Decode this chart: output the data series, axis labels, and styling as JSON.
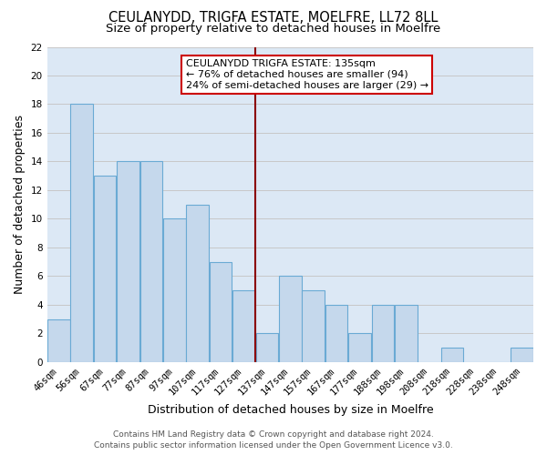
{
  "title": "CEULANYDD, TRIGFA ESTATE, MOELFRE, LL72 8LL",
  "subtitle": "Size of property relative to detached houses in Moelfre",
  "xlabel": "Distribution of detached houses by size in Moelfre",
  "ylabel": "Number of detached properties",
  "bin_labels": [
    "46sqm",
    "56sqm",
    "67sqm",
    "77sqm",
    "87sqm",
    "97sqm",
    "107sqm",
    "117sqm",
    "127sqm",
    "137sqm",
    "147sqm",
    "157sqm",
    "167sqm",
    "177sqm",
    "188sqm",
    "198sqm",
    "208sqm",
    "218sqm",
    "228sqm",
    "238sqm",
    "248sqm"
  ],
  "counts": [
    3,
    18,
    13,
    14,
    14,
    10,
    11,
    7,
    5,
    2,
    6,
    5,
    4,
    2,
    4,
    4,
    0,
    1,
    0,
    0,
    1
  ],
  "bar_color": "#c5d8ec",
  "bar_edge_color": "#6aaad4",
  "bar_linewidth": 0.8,
  "grid_color": "#c8c8c8",
  "background_color": "#dce8f5",
  "annotation_box_title": "CEULANYDD TRIGFA ESTATE: 135sqm",
  "annotation_line1": "← 76% of detached houses are smaller (94)",
  "annotation_line2": "24% of semi-detached houses are larger (29) →",
  "marker_line_color": "#8b0000",
  "marker_bin_index": 8,
  "ylim": [
    0,
    22
  ],
  "yticks": [
    0,
    2,
    4,
    6,
    8,
    10,
    12,
    14,
    16,
    18,
    20,
    22
  ],
  "footer_line1": "Contains HM Land Registry data © Crown copyright and database right 2024.",
  "footer_line2": "Contains public sector information licensed under the Open Government Licence v3.0.",
  "title_fontsize": 10.5,
  "subtitle_fontsize": 9.5,
  "axis_label_fontsize": 9,
  "tick_fontsize": 7.5,
  "annotation_fontsize": 8,
  "footer_fontsize": 6.5,
  "n_bins": 21
}
